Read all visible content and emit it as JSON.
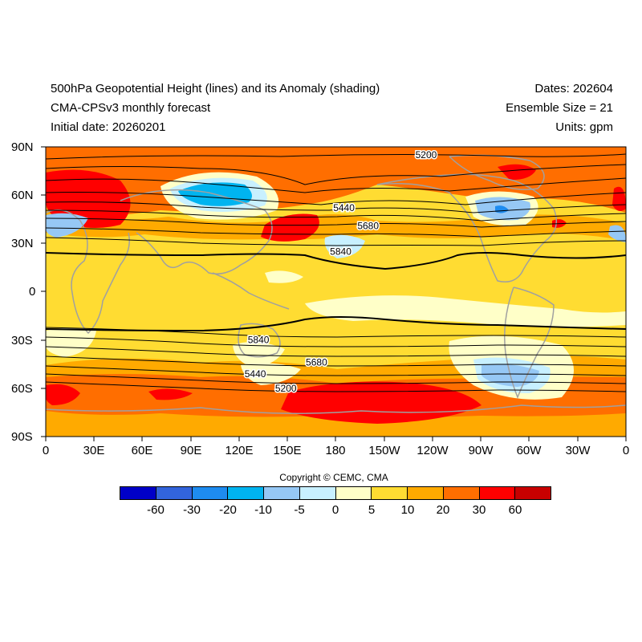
{
  "header": {
    "title_line1": "500hPa Geopotential Height (lines) and its Anomaly (shading)",
    "title_line2": "CMA-CPSv3 monthly forecast",
    "title_line3": "Initial date: 20260201",
    "dates": "Dates: 202604",
    "ensemble": "Ensemble Size = 21",
    "units": "Units: gpm"
  },
  "map": {
    "lat_labels": [
      "90N",
      "60N",
      "30N",
      "0",
      "30S",
      "60S",
      "90S"
    ],
    "lon_labels": [
      "0",
      "30E",
      "60E",
      "90E",
      "120E",
      "150E",
      "180",
      "150W",
      "120W",
      "90W",
      "60W",
      "30W",
      "0"
    ],
    "contour_labels": [
      {
        "text": "5200",
        "lon": 236,
        "lat": 85
      },
      {
        "text": "5440",
        "lon": 185,
        "lat": 52
      },
      {
        "text": "5680",
        "lon": 200,
        "lat": 41
      },
      {
        "text": "5840",
        "lon": 183,
        "lat": 25
      },
      {
        "text": "5840",
        "lon": 132,
        "lat": -30
      },
      {
        "text": "5680",
        "lon": 168,
        "lat": -44
      },
      {
        "text": "5440",
        "lon": 130,
        "lat": -51
      },
      {
        "text": "5200",
        "lon": 149,
        "lat": -60
      }
    ]
  },
  "copyright": "Copyright © CEMC, CMA",
  "colorbar": {
    "colors": [
      "#0000c8",
      "#3264dc",
      "#1e8cf0",
      "#00b4f0",
      "#96c8f5",
      "#c8f0ff",
      "#ffffc8",
      "#ffdc32",
      "#ffaa00",
      "#ff6e00",
      "#ff0000",
      "#c80000"
    ],
    "labels": [
      "-60",
      "-30",
      "-20",
      "-10",
      "-5",
      "0",
      "5",
      "10",
      "20",
      "30",
      "60"
    ]
  }
}
